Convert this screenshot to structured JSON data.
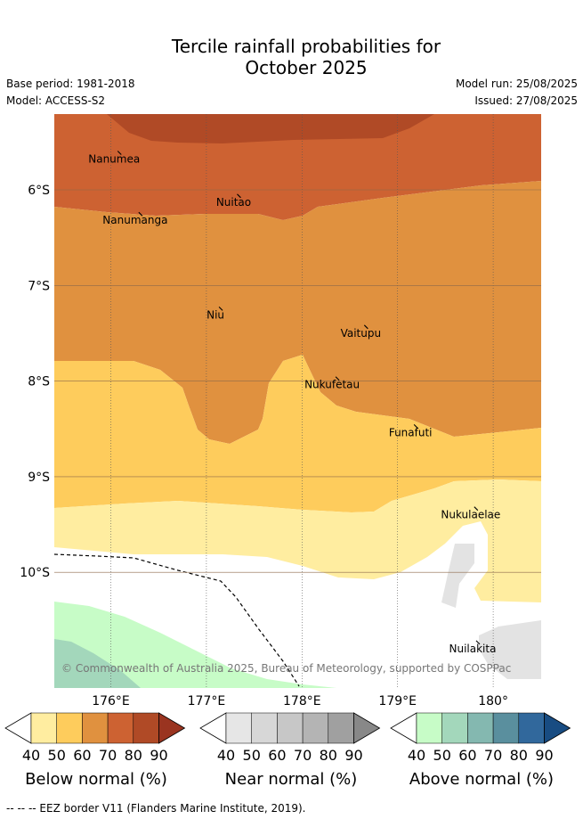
{
  "header": {
    "title_line1": "Tercile rainfall probabilities for",
    "title_line2": "October 2025",
    "base_period": "Base period: 1981-2018",
    "model": "Model: ACCESS-S2",
    "model_run": "Model run: 25/08/2025",
    "issued": "Issued: 27/08/2025"
  },
  "chart_data": {
    "type": "map",
    "lon_ticks": [
      "176°E",
      "177°E",
      "178°E",
      "179°E",
      "180°"
    ],
    "lat_ticks": [
      "6°S",
      "7°S",
      "8°S",
      "9°S",
      "10°S"
    ],
    "extent": {
      "lon": [
        175.4,
        180.5
      ],
      "lat": [
        -11.2,
        -5.2
      ]
    },
    "places": [
      {
        "name": "Nanumea",
        "lon": 176.1,
        "lat": -5.66
      },
      {
        "name": "Nuitao",
        "lon": 177.35,
        "lat": -6.11
      },
      {
        "name": "Nanumanga",
        "lon": 176.32,
        "lat": -6.3
      },
      {
        "name": "Niu",
        "lon": 177.16,
        "lat": -7.29
      },
      {
        "name": "Vaitupu",
        "lon": 178.68,
        "lat": -7.48
      },
      {
        "name": "Nukufetau",
        "lon": 178.38,
        "lat": -8.02
      },
      {
        "name": "Funafuti",
        "lon": 179.2,
        "lat": -8.52
      },
      {
        "name": "Nukulaelae",
        "lon": 179.83,
        "lat": -9.38
      },
      {
        "name": "Nuilakita",
        "lon": 179.85,
        "lat": -10.78
      }
    ],
    "copyright": "© Commonwealth of Australia 2025, Bureau of Meteorology, supported by COSPPac",
    "colorbars": [
      {
        "title": "Below normal (%)",
        "ticks": [
          "40",
          "50",
          "60",
          "70",
          "80",
          "90"
        ],
        "colors": [
          "#ffeda0",
          "#fecc5c",
          "#e0913f",
          "#cd6232",
          "#b04a26",
          "#9a3420"
        ]
      },
      {
        "title": "Near normal (%)",
        "ticks": [
          "40",
          "50",
          "60",
          "70",
          "80",
          "90"
        ],
        "colors": [
          "#e6e6e6",
          "#d7d7d7",
          "#c7c7c7",
          "#b4b4b4",
          "#a0a0a0",
          "#888888"
        ]
      },
      {
        "title": "Above normal (%)",
        "ticks": [
          "40",
          "50",
          "60",
          "70",
          "80",
          "90"
        ],
        "colors": [
          "#c7fcc7",
          "#a3d7bb",
          "#84b8b0",
          "#5a8f9e",
          "#31689c",
          "#184c82"
        ]
      }
    ]
  },
  "footnote": "-- -- -- EEZ border V11 (Flanders Marine Institute, 2019)."
}
